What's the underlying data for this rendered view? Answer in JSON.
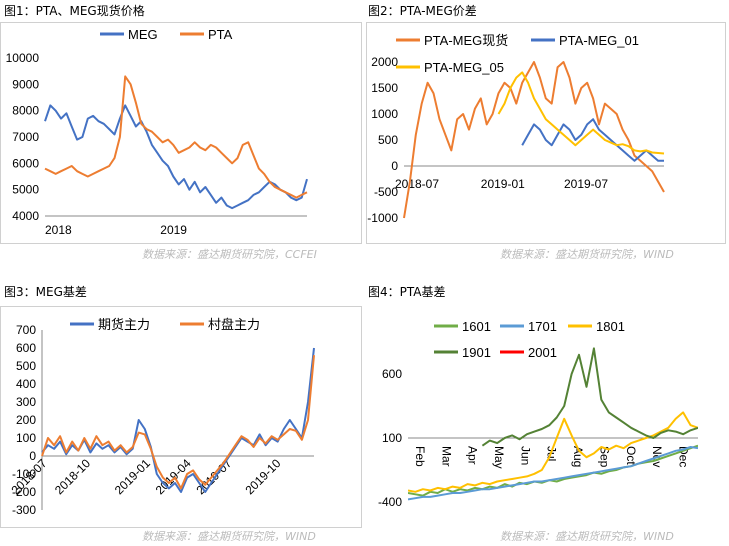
{
  "source_label": "数据来源：盛达期货研究院，WIND",
  "source_label_1": "数据来源：盛达期货研究院，CCFEI",
  "chart_data": [
    {
      "id": "c1",
      "type": "line",
      "title": "图1：PTA、MEG现货价格",
      "ylim": [
        4000,
        10000
      ],
      "yticks": [
        "10000",
        "9000",
        "8000",
        "7000",
        "6000",
        "5000",
        "4000"
      ],
      "yvals": [
        10000,
        9000,
        8000,
        7000,
        6000,
        5000,
        4000
      ],
      "xticks": [
        "2018",
        "2019"
      ],
      "xtickpos": [
        0,
        0.44
      ],
      "series": [
        {
          "name": "MEG",
          "color": "#4472C4",
          "values": [
            7600,
            8200,
            8000,
            7700,
            7900,
            7400,
            6900,
            7000,
            7700,
            7800,
            7600,
            7500,
            7300,
            7100,
            7700,
            8200,
            7800,
            7400,
            7600,
            7200,
            6700,
            6400,
            6100,
            5900,
            5500,
            5200,
            5400,
            5000,
            5300,
            4900,
            5100,
            4800,
            4500,
            4700,
            4400,
            4300,
            4400,
            4500,
            4600,
            4800,
            4900,
            5100,
            5300,
            5200,
            5000,
            4900,
            4700,
            4600,
            4700,
            5400
          ]
        },
        {
          "name": "PTA",
          "color": "#ED7D31",
          "values": [
            5800,
            5700,
            5600,
            5700,
            5800,
            5900,
            5700,
            5600,
            5500,
            5600,
            5700,
            5800,
            5900,
            6200,
            7000,
            9300,
            9000,
            8300,
            7500,
            7300,
            7200,
            7000,
            6800,
            6900,
            6700,
            6400,
            6500,
            6600,
            6800,
            6600,
            6500,
            6700,
            6600,
            6400,
            6200,
            6000,
            6200,
            6700,
            6800,
            6300,
            5800,
            5600,
            5300,
            5100,
            5000,
            4900,
            4800,
            4700,
            4800,
            4900
          ]
        }
      ]
    },
    {
      "id": "c2",
      "type": "line",
      "title": "图2：PTA-MEG价差",
      "ylim": [
        -1000,
        2000
      ],
      "yticks": [
        "2000",
        "1500",
        "1000",
        "500",
        "0",
        "-500",
        "-1000"
      ],
      "yvals": [
        2000,
        1500,
        1000,
        500,
        0,
        -500,
        -1000
      ],
      "xticks": [
        "2018-07",
        "2019-01",
        "2019-07"
      ],
      "xtickpos": [
        0.05,
        0.38,
        0.7
      ],
      "series": [
        {
          "name": "PTA-MEG现货",
          "color": "#ED7D31",
          "values": [
            -1000,
            -300,
            600,
            1200,
            1600,
            1400,
            900,
            600,
            300,
            900,
            1000,
            700,
            1100,
            1300,
            800,
            1000,
            1400,
            1600,
            1500,
            1200,
            1600,
            1800,
            2000,
            1700,
            1300,
            1200,
            1900,
            2000,
            1700,
            1200,
            1500,
            1600,
            1300,
            800,
            1200,
            1100,
            1000,
            700,
            500,
            200,
            100,
            0,
            -100,
            -300,
            -500
          ]
        },
        {
          "name": "PTA-MEG_01",
          "color": "#4472C4",
          "values": [
            null,
            null,
            null,
            null,
            null,
            null,
            null,
            null,
            null,
            null,
            null,
            null,
            null,
            null,
            null,
            null,
            null,
            null,
            null,
            null,
            400,
            600,
            800,
            700,
            500,
            400,
            600,
            800,
            700,
            500,
            600,
            800,
            900,
            700,
            600,
            500,
            400,
            300,
            200,
            100,
            200,
            300,
            200,
            100,
            100
          ]
        },
        {
          "name": "PTA-MEG_05",
          "color": "#FFC000",
          "values": [
            null,
            null,
            null,
            null,
            null,
            null,
            null,
            null,
            null,
            null,
            null,
            null,
            null,
            null,
            null,
            null,
            1000,
            1200,
            1500,
            1700,
            1800,
            1600,
            1300,
            1100,
            900,
            800,
            700,
            600,
            500,
            400,
            500,
            600,
            700,
            600,
            500,
            450,
            400,
            420,
            380,
            300,
            280,
            300,
            260,
            250,
            240
          ]
        }
      ]
    },
    {
      "id": "c3",
      "type": "line",
      "title": "图3：MEG基差",
      "ylim": [
        -300,
        700
      ],
      "yticks": [
        "700",
        "600",
        "500",
        "400",
        "300",
        "200",
        "100",
        "0",
        "-100",
        "-200",
        "-300"
      ],
      "yvals": [
        700,
        600,
        500,
        400,
        300,
        200,
        100,
        0,
        -100,
        -200,
        -300
      ],
      "xticks": [
        "2018-07",
        "2018-10",
        "2019-01",
        "2019-04",
        "2019-07",
        "2019-10"
      ],
      "xtickpos": [
        0.02,
        0.18,
        0.4,
        0.55,
        0.7,
        0.88
      ],
      "series": [
        {
          "name": "期货主力",
          "color": "#4472C4",
          "values": [
            20,
            60,
            40,
            80,
            10,
            60,
            30,
            90,
            20,
            70,
            40,
            60,
            20,
            50,
            10,
            40,
            200,
            150,
            50,
            -100,
            -150,
            -180,
            -150,
            -200,
            -120,
            -100,
            -150,
            -200,
            -150,
            -100,
            -50,
            0,
            50,
            100,
            80,
            60,
            120,
            60,
            100,
            80,
            150,
            200,
            150,
            100,
            300,
            600
          ]
        },
        {
          "name": "村盘主力",
          "color": "#ED7D31",
          "values": [
            0,
            100,
            60,
            110,
            20,
            80,
            30,
            100,
            40,
            110,
            60,
            80,
            30,
            60,
            20,
            50,
            130,
            120,
            40,
            -60,
            -120,
            -150,
            -120,
            -180,
            -100,
            -80,
            -130,
            -160,
            -120,
            -80,
            -40,
            10,
            60,
            110,
            90,
            50,
            100,
            70,
            110,
            90,
            120,
            150,
            140,
            90,
            200,
            560
          ]
        }
      ]
    },
    {
      "id": "c4",
      "type": "line",
      "title": "图4：PTA基差",
      "ylim": [
        -400,
        850
      ],
      "yticks": [
        "600",
        "100",
        "-400"
      ],
      "yvals": [
        600,
        100,
        -400
      ],
      "xticks": [
        "Feb",
        "Mar",
        "Apr",
        "May",
        "Jun",
        "Jul",
        "Aug",
        "Sep",
        "Oct",
        "Nov",
        "Dec"
      ],
      "series": [
        {
          "name": "1601",
          "color": "#70AD47",
          "values": [
            -330,
            -340,
            -350,
            -320,
            -330,
            -300,
            -320,
            -300,
            -310,
            -290,
            -300,
            -280,
            -290,
            -260,
            -280,
            -250,
            -260,
            -240,
            -250,
            -230,
            -240,
            -220,
            -210,
            -200,
            -190,
            -170,
            -180,
            -160,
            -150,
            -130,
            -120,
            -100,
            -90,
            -80,
            -60,
            -40,
            -20,
            0,
            20,
            40
          ]
        },
        {
          "name": "1701",
          "color": "#5B9BD5",
          "values": [
            -380,
            -370,
            -360,
            -360,
            -350,
            -340,
            -330,
            -330,
            -320,
            -310,
            -300,
            -300,
            -290,
            -280,
            -270,
            -260,
            -250,
            -240,
            -240,
            -230,
            -220,
            -210,
            -200,
            -190,
            -180,
            -170,
            -160,
            -150,
            -140,
            -130,
            -120,
            -100,
            -80,
            -60,
            -40,
            -20,
            0,
            10,
            30,
            20
          ]
        },
        {
          "name": "1801",
          "color": "#FFC000",
          "values": [
            -310,
            -320,
            -300,
            -310,
            -290,
            -300,
            -280,
            -290,
            -260,
            -270,
            -250,
            -260,
            -240,
            -230,
            -220,
            -210,
            -200,
            -180,
            -150,
            -50,
            100,
            250,
            120,
            0,
            -50,
            -20,
            30,
            10,
            40,
            20,
            60,
            80,
            100,
            120,
            150,
            180,
            250,
            300,
            200,
            180
          ]
        },
        {
          "name": "1901",
          "color": "#548235",
          "values": [
            null,
            null,
            null,
            null,
            null,
            null,
            null,
            null,
            null,
            null,
            40,
            80,
            60,
            100,
            120,
            90,
            130,
            150,
            170,
            200,
            260,
            350,
            600,
            750,
            500,
            800,
            400,
            300,
            260,
            220,
            180,
            150,
            120,
            100,
            140,
            160,
            150,
            130,
            160,
            180
          ]
        },
        {
          "name": "2001",
          "color": "#FF0000",
          "values": [
            null,
            null,
            null,
            null,
            null,
            null,
            null,
            null,
            null,
            null,
            null,
            null,
            null,
            null,
            null,
            null,
            null,
            null,
            null,
            null,
            null,
            null,
            null,
            null,
            null,
            null,
            null,
            null,
            null,
            null,
            null,
            null,
            null,
            null,
            null,
            null,
            null,
            null,
            null,
            null
          ]
        }
      ]
    }
  ]
}
